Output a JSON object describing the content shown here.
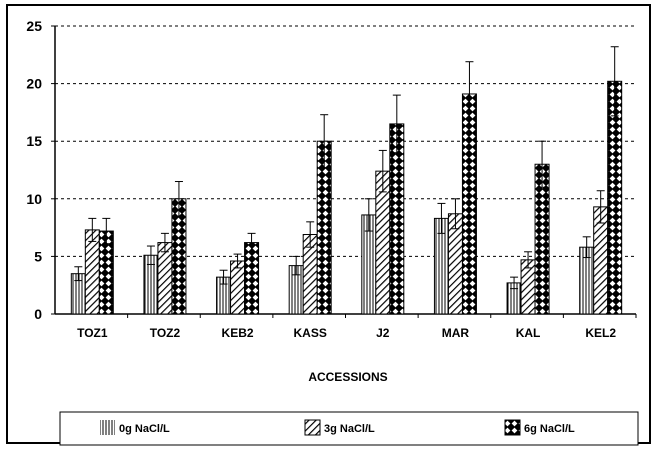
{
  "chart_data": {
    "type": "bar",
    "categories": [
      "TOZ1",
      "TOZ2",
      "KEB2",
      "KASS",
      "J2",
      "MAR",
      "KAL",
      "KEL2"
    ],
    "series": [
      {
        "name": "0g NaCl/L",
        "pattern": "vertical-lines",
        "values": [
          3.5,
          5.1,
          3.2,
          4.2,
          8.6,
          8.3,
          2.7,
          5.8
        ],
        "errors": [
          0.6,
          0.8,
          0.6,
          0.8,
          1.4,
          1.3,
          0.5,
          0.9
        ]
      },
      {
        "name": "3g NaCl/L",
        "pattern": "diagonal-lines",
        "values": [
          7.3,
          6.2,
          4.6,
          6.9,
          12.4,
          8.7,
          4.7,
          9.3
        ],
        "errors": [
          1.0,
          0.8,
          0.6,
          1.1,
          1.8,
          1.3,
          0.7,
          1.4
        ]
      },
      {
        "name": "6g NaCl/L",
        "pattern": "checker-diamonds",
        "values": [
          7.2,
          10.0,
          6.2,
          15.0,
          16.5,
          19.1,
          13.0,
          20.2
        ],
        "errors": [
          1.1,
          1.5,
          0.8,
          2.3,
          2.5,
          2.8,
          2.0,
          3.0
        ]
      }
    ],
    "xlabel": "ACCESSIONS",
    "ylabel": "",
    "ylim": [
      0,
      25
    ],
    "yticks": [
      "0",
      "5",
      "10",
      "15",
      "20",
      "25"
    ],
    "grid": "horizontal-dashed",
    "legend_position": "bottom"
  }
}
